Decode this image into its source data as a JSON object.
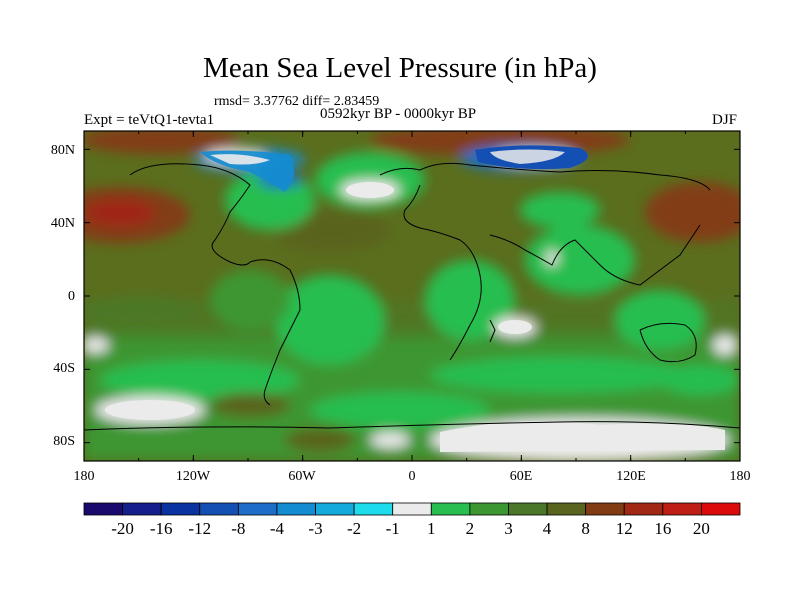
{
  "title": "Mean Sea Level Pressure (in hPa)",
  "stats": "rmsd= 3.37762 diff= 2.83459",
  "left_label": "Expt = teVtQ1-tevta1",
  "center_label": "0592kyr BP - 0000kyr BP",
  "right_label": "DJF",
  "lat_labels": [
    "80N",
    "40N",
    "0",
    "40S",
    "80S"
  ],
  "lon_labels": [
    "180",
    "120W",
    "60W",
    "0",
    "60E",
    "120E",
    "180"
  ],
  "colorbar": {
    "levels": [
      "-20",
      "-16",
      "-12",
      "-8",
      "-4",
      "-3",
      "-2",
      "-1",
      "1",
      "2",
      "3",
      "4",
      "8",
      "12",
      "16",
      "20"
    ],
    "colors": [
      "#1a0a6e",
      "#141e8c",
      "#0a32a0",
      "#1450b4",
      "#1e6ec8",
      "#148cd2",
      "#14aadc",
      "#1edceb",
      "#ebebeb",
      "#28be50",
      "#3c9632",
      "#4b7828",
      "#5a641e",
      "#823c14",
      "#a02814",
      "#be1e14",
      "#dc0a0a"
    ]
  },
  "colors": {
    "background": "#ffffff",
    "field_base": "#5a6e1e",
    "ocean_south": "#3c9632"
  }
}
